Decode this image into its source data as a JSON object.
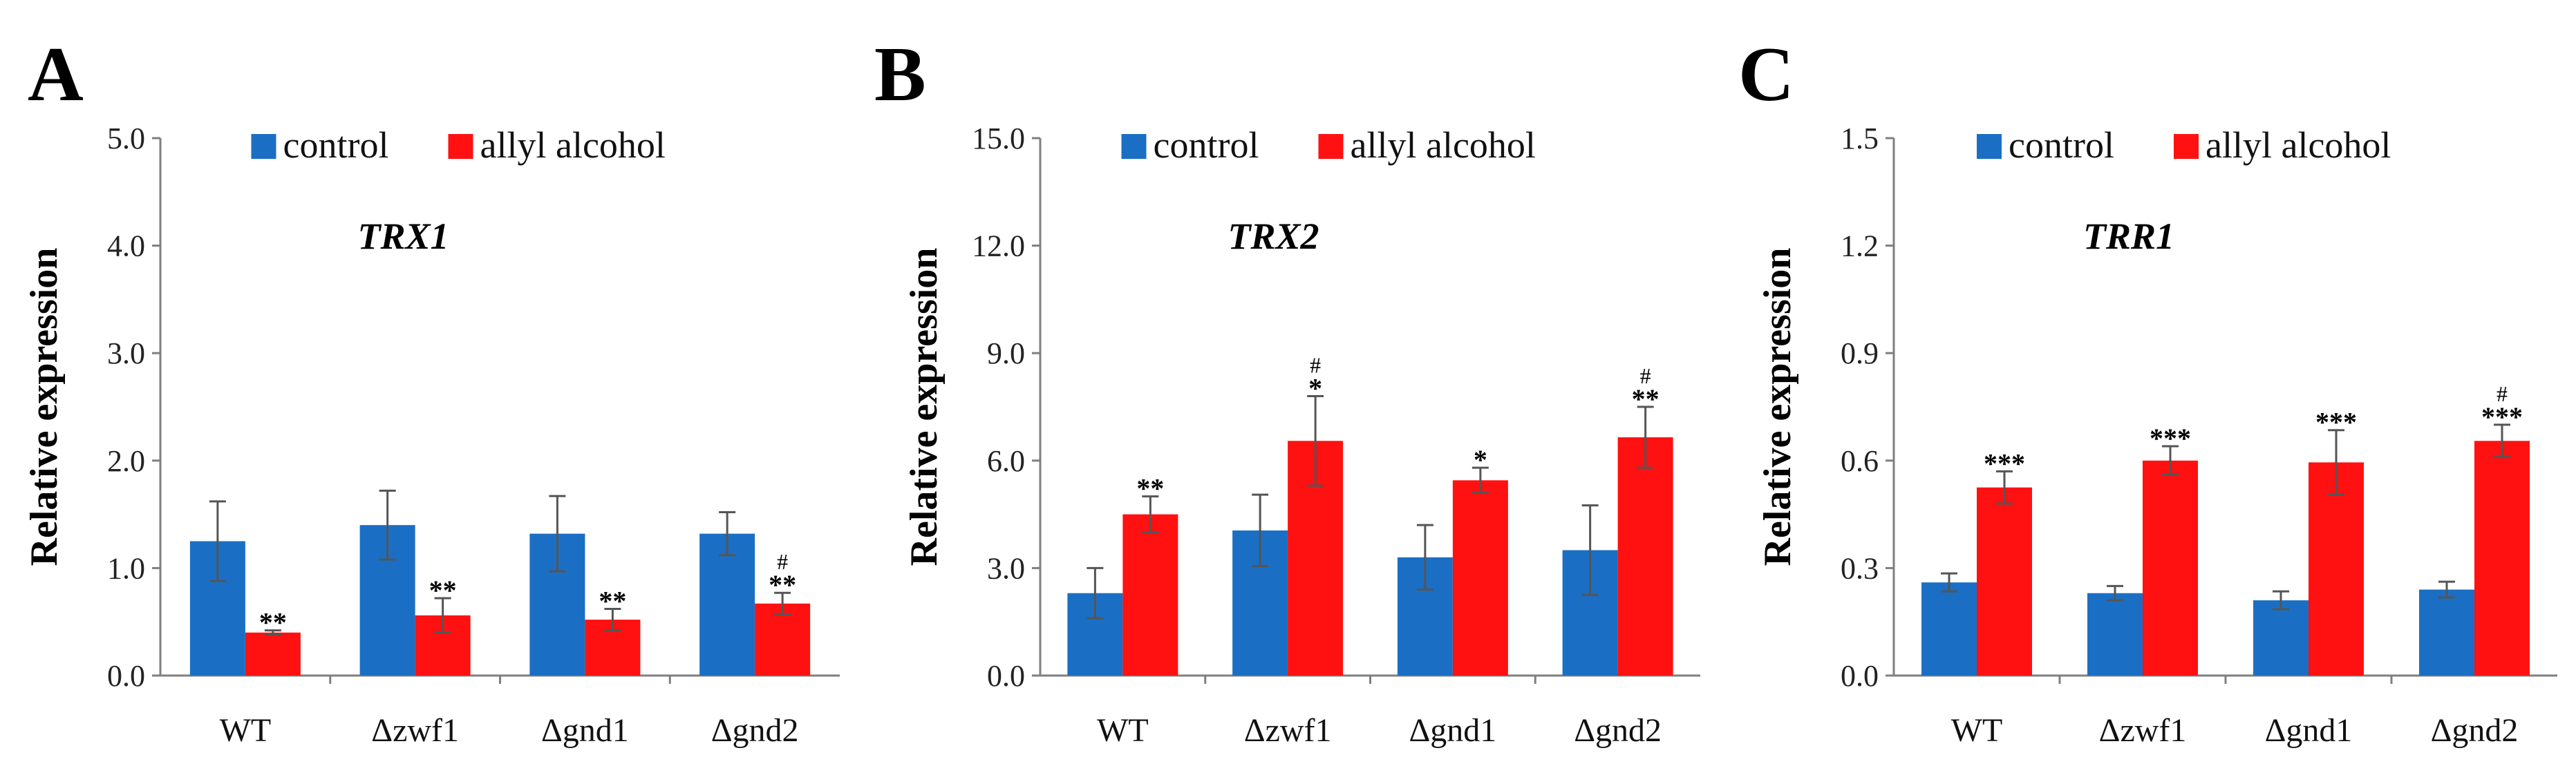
{
  "colors": {
    "control": "#1a6fc4",
    "allyl": "#ff1111",
    "axis": "#7f7f7f",
    "errorbar": "#555555"
  },
  "chart_data": [
    {
      "type": "bar",
      "panel": "A",
      "title": "TRX1",
      "ylabel": "Relative expression",
      "xlabel": "",
      "categories": [
        "WT",
        "Δzwf1",
        "Δgnd1",
        "Δgnd2"
      ],
      "ylim": [
        0,
        5.0
      ],
      "yticks": [
        "0.0",
        "1.0",
        "2.0",
        "3.0",
        "4.0",
        "5.0"
      ],
      "legend_position": "top-center",
      "series": [
        {
          "name": "control",
          "values": [
            1.25,
            1.4,
            1.32,
            1.32
          ],
          "errors": [
            0.37,
            0.32,
            0.35,
            0.2
          ]
        },
        {
          "name": "allyl alcohol",
          "values": [
            0.4,
            0.56,
            0.52,
            0.67
          ],
          "errors": [
            0.02,
            0.16,
            0.1,
            0.1
          ]
        }
      ],
      "annotations": [
        {
          "series": 1,
          "index": 0,
          "text": "**",
          "hash": ""
        },
        {
          "series": 1,
          "index": 1,
          "text": "**",
          "hash": ""
        },
        {
          "series": 1,
          "index": 2,
          "text": "**",
          "hash": ""
        },
        {
          "series": 1,
          "index": 3,
          "text": "**",
          "hash": "#"
        }
      ]
    },
    {
      "type": "bar",
      "panel": "B",
      "title": "TRX2",
      "ylabel": "Relative expression",
      "xlabel": "",
      "categories": [
        "WT",
        "Δzwf1",
        "Δgnd1",
        "Δgnd2"
      ],
      "ylim": [
        0,
        15.0
      ],
      "yticks": [
        "0.0",
        "3.0",
        "6.0",
        "9.0",
        "12.0",
        "15.0"
      ],
      "legend_position": "top-center",
      "series": [
        {
          "name": "control",
          "values": [
            2.3,
            4.05,
            3.3,
            3.5
          ],
          "errors": [
            0.7,
            1.0,
            0.9,
            1.25
          ]
        },
        {
          "name": "allyl alcohol",
          "values": [
            4.5,
            6.55,
            5.45,
            6.65
          ],
          "errors": [
            0.5,
            1.25,
            0.35,
            0.85
          ]
        }
      ],
      "annotations": [
        {
          "series": 1,
          "index": 0,
          "text": "**",
          "hash": ""
        },
        {
          "series": 1,
          "index": 1,
          "text": "*",
          "hash": "#"
        },
        {
          "series": 1,
          "index": 2,
          "text": "*",
          "hash": ""
        },
        {
          "series": 1,
          "index": 3,
          "text": "**",
          "hash": "#"
        }
      ]
    },
    {
      "type": "bar",
      "panel": "C",
      "title": "TRR1",
      "ylabel": "Relative expression",
      "xlabel": "",
      "categories": [
        "WT",
        "Δzwf1",
        "Δgnd1",
        "Δgnd2"
      ],
      "ylim": [
        0,
        1.5
      ],
      "yticks": [
        "0.0",
        "0.3",
        "0.6",
        "0.9",
        "1.2",
        "1.5"
      ],
      "legend_position": "top-center",
      "series": [
        {
          "name": "control",
          "values": [
            0.26,
            0.23,
            0.21,
            0.24
          ],
          "errors": [
            0.025,
            0.02,
            0.025,
            0.022
          ]
        },
        {
          "name": "allyl alcohol",
          "values": [
            0.525,
            0.6,
            0.595,
            0.655
          ],
          "errors": [
            0.045,
            0.04,
            0.09,
            0.045
          ]
        }
      ],
      "annotations": [
        {
          "series": 1,
          "index": 0,
          "text": "***",
          "hash": ""
        },
        {
          "series": 1,
          "index": 1,
          "text": "***",
          "hash": ""
        },
        {
          "series": 1,
          "index": 2,
          "text": "***",
          "hash": ""
        },
        {
          "series": 1,
          "index": 3,
          "text": "***",
          "hash": "#"
        }
      ]
    }
  ]
}
